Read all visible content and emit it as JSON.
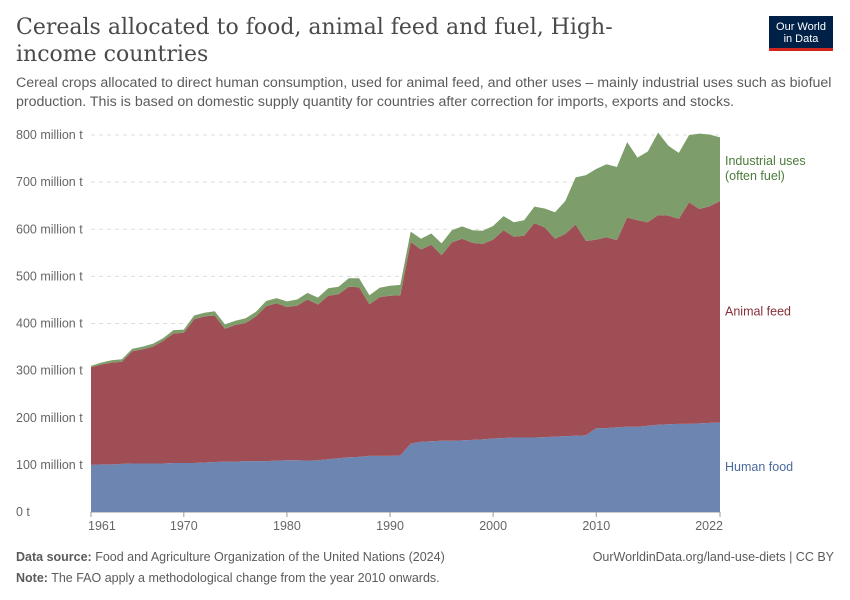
{
  "header": {
    "title": "Cereals allocated to food, animal feed and fuel, High-income countries",
    "subtitle": "Cereal crops allocated to direct human consumption, used for animal feed, and other uses – mainly industrial uses such as biofuel production. This is based on domestic supply quantity for countries after correction for imports, exports and stocks.",
    "logo_line1": "Our World",
    "logo_line2": "in Data"
  },
  "footer": {
    "source_label": "Data source:",
    "source_text": "Food and Agriculture Organization of the United Nations (2024)",
    "url_text": "OurWorldinData.org/land-use-diets | CC BY",
    "note_label": "Note:",
    "note_text": "The FAO apply a methodological change from the year 2010 onwards."
  },
  "colors": {
    "food": "#6d86b1",
    "feed": "#a04e56",
    "industrial": "#7d9e6b",
    "food_label": "#4c6a9c",
    "feed_label": "#883039",
    "industrial_label": "#4b7a3a"
  },
  "chart_data": {
    "type": "area",
    "stacked": true,
    "x_ticks": [
      1961,
      1970,
      1980,
      1990,
      2000,
      2010,
      2022
    ],
    "y_ticks": [
      0,
      100,
      200,
      300,
      400,
      500,
      600,
      700,
      800
    ],
    "y_tick_labels": [
      "0 t",
      "100 million t",
      "200 million t",
      "300 million t",
      "400 million t",
      "500 million t",
      "600 million t",
      "700 million t",
      "800 million t"
    ],
    "ylim": [
      0,
      800
    ],
    "xlim": [
      1961,
      2022
    ],
    "grid": "horizontal dashed",
    "legend": "inline right",
    "x": [
      1961,
      1962,
      1963,
      1964,
      1965,
      1966,
      1967,
      1968,
      1969,
      1970,
      1971,
      1972,
      1973,
      1974,
      1975,
      1976,
      1977,
      1978,
      1979,
      1980,
      1981,
      1982,
      1983,
      1984,
      1985,
      1986,
      1987,
      1988,
      1989,
      1990,
      1991,
      1992,
      1993,
      1994,
      1995,
      1996,
      1997,
      1998,
      1999,
      2000,
      2001,
      2002,
      2003,
      2004,
      2005,
      2006,
      2007,
      2008,
      2009,
      2010,
      2011,
      2012,
      2013,
      2014,
      2015,
      2016,
      2017,
      2018,
      2019,
      2020,
      2021,
      2022
    ],
    "series": [
      {
        "name": "Human food",
        "values": [
          100,
          101,
          101,
          102,
          103,
          103,
          103,
          103,
          104,
          104,
          104,
          105,
          106,
          107,
          107,
          108,
          108,
          108,
          109,
          110,
          110,
          109,
          110,
          112,
          114,
          116,
          117,
          119,
          119,
          119,
          120,
          145,
          149,
          150,
          151,
          151,
          152,
          153,
          154,
          156,
          157,
          158,
          158,
          158,
          159,
          160,
          161,
          162,
          163,
          178,
          178,
          180,
          181,
          181,
          183,
          185,
          186,
          187,
          187,
          188,
          189,
          190
        ]
      },
      {
        "name": "Animal feed",
        "values": [
          207,
          212,
          216,
          217,
          238,
          242,
          248,
          260,
          275,
          276,
          305,
          310,
          311,
          282,
          290,
          293,
          307,
          329,
          334,
          325,
          328,
          342,
          330,
          347,
          348,
          362,
          360,
          322,
          337,
          340,
          340,
          428,
          408,
          417,
          394,
          421,
          428,
          418,
          415,
          422,
          441,
          426,
          428,
          455,
          445,
          420,
          429,
          448,
          412,
          400,
          405,
          397,
          444,
          438,
          432,
          445,
          443,
          435,
          470,
          455,
          460,
          470
        ]
      },
      {
        "name": "Industrial uses (often fuel)",
        "values": [
          3,
          4,
          5,
          5,
          5,
          6,
          6,
          6,
          7,
          7,
          8,
          8,
          9,
          9,
          9,
          10,
          10,
          11,
          11,
          12,
          13,
          14,
          15,
          16,
          16,
          18,
          19,
          19,
          20,
          21,
          22,
          22,
          23,
          24,
          25,
          26,
          26,
          27,
          28,
          29,
          30,
          31,
          33,
          35,
          40,
          56,
          70,
          100,
          140,
          150,
          155,
          155,
          160,
          133,
          150,
          175,
          148,
          140,
          143,
          160,
          152,
          135
        ]
      }
    ]
  }
}
